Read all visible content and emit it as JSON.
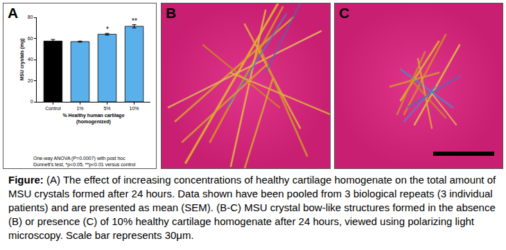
{
  "panel_labels": [
    "A",
    "B",
    "C"
  ],
  "chart_data": {
    "type": "bar",
    "categories": [
      "Control",
      "1%",
      "5%",
      "10%"
    ],
    "values": [
      57.5,
      57,
      64,
      71.5
    ],
    "errors": [
      1.5,
      0.5,
      0.8,
      1.5
    ],
    "colors": [
      "#000000",
      "#5ab0ea",
      "#5ab0ea",
      "#5ab0ea"
    ],
    "ylim": [
      0,
      80
    ],
    "yticks": [
      0,
      20,
      40,
      60,
      80
    ],
    "y_label": "MSU crystals (mg)",
    "x_label": [
      "% Healthy human cartilage",
      "(homogenized)"
    ],
    "annotations": [
      {
        "category": "5%",
        "text": "*"
      },
      {
        "category": "10%",
        "text": "**"
      }
    ],
    "footnote": [
      "One-way ANOVA (P=0.0007) with post hoc",
      "Dunnett's test, *p<0.05, **p<0.01 versus control"
    ],
    "grid": false
  },
  "caption": {
    "label": "Figure:",
    "text": " (A) The effect of increasing concentrations of healthy cartilage homogenate on the total amount of MSU crystals formed after 24 hours.  Data shown have been pooled from 3 biological repeats (3 individual patients) and are presented as mean (SEM). (B-C) MSU crystal bow-like structures formed in the absence (B) or presence (C) of 10% healthy cartilage homogenate after 24 hours, viewed using polarizing light microscopy.  Scale bar represents 30μm."
  }
}
